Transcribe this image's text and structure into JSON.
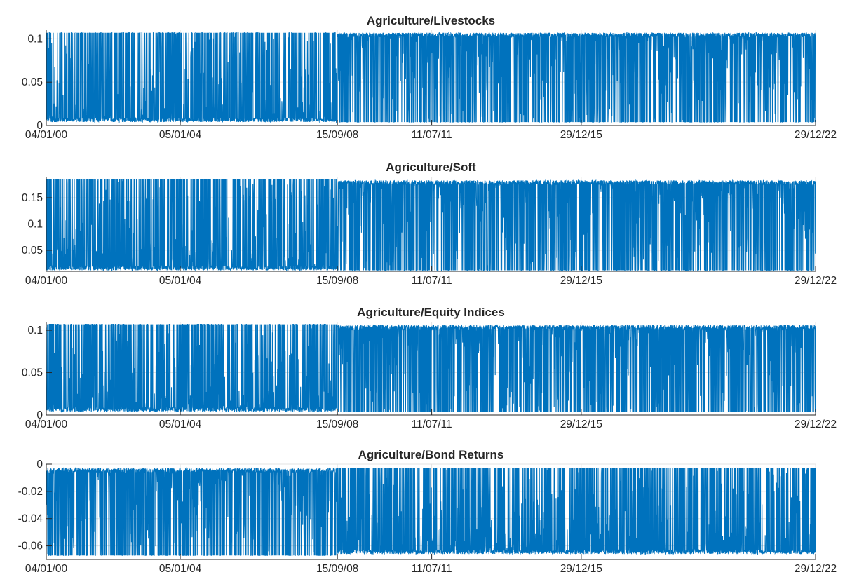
{
  "chart_data": [
    {
      "type": "line",
      "title": "Agriculture/Livestocks",
      "xlabel": "",
      "ylabel": "",
      "x_ticks": [
        "04/01/00",
        "05/01/04",
        "15/09/08",
        "11/07/11",
        "29/12/15",
        "29/12/22"
      ],
      "x_tick_dates": [
        "2000-01-04",
        "2004-01-05",
        "2008-09-15",
        "2011-07-11",
        "2015-12-29",
        "2022-12-29"
      ],
      "y_ticks": [
        "0",
        "0.05",
        "0.1"
      ],
      "ylim": [
        0,
        0.11
      ],
      "grid": true,
      "color": "#0072BD",
      "series_regimes": [
        {
          "x_range": [
            "2000-01-04",
            "2008-09-15"
          ],
          "level": 0.004,
          "spike_to": 0.107,
          "description": "low baseline with frequent spikes"
        },
        {
          "x_range": [
            "2008-09-15",
            "2022-12-29"
          ],
          "level": 0.107,
          "dip_to": 0.004,
          "description": "high plateau with frequent dips"
        }
      ]
    },
    {
      "type": "line",
      "title": "Agriculture/Soft",
      "xlabel": "",
      "ylabel": "",
      "x_ticks": [
        "04/01/00",
        "05/01/04",
        "15/09/08",
        "11/07/11",
        "29/12/15",
        "29/12/22"
      ],
      "x_tick_dates": [
        "2000-01-04",
        "2004-01-05",
        "2008-09-15",
        "2011-07-11",
        "2015-12-29",
        "2022-12-29"
      ],
      "y_ticks": [
        "0.05",
        "0.1",
        "0.15"
      ],
      "ylim": [
        0.01,
        0.19
      ],
      "grid": true,
      "color": "#0072BD",
      "series_regimes": [
        {
          "x_range": [
            "2000-01-04",
            "2008-09-15"
          ],
          "level": 0.012,
          "spike_to": 0.185,
          "description": "low baseline with frequent spikes"
        },
        {
          "x_range": [
            "2008-09-15",
            "2022-12-29"
          ],
          "level": 0.183,
          "dip_to": 0.012,
          "description": "high plateau with frequent dips"
        }
      ]
    },
    {
      "type": "line",
      "title": "Agriculture/Equity Indices",
      "xlabel": "",
      "ylabel": "",
      "x_ticks": [
        "04/01/00",
        "05/01/04",
        "15/09/08",
        "11/07/11",
        "29/12/15",
        "29/12/22"
      ],
      "x_tick_dates": [
        "2000-01-04",
        "2004-01-05",
        "2008-09-15",
        "2011-07-11",
        "2015-12-29",
        "2022-12-29"
      ],
      "y_ticks": [
        "0",
        "0.05",
        "0.1"
      ],
      "ylim": [
        0,
        0.11
      ],
      "grid": true,
      "color": "#0072BD",
      "series_regimes": [
        {
          "x_range": [
            "2000-01-04",
            "2008-09-15"
          ],
          "level": 0.004,
          "spike_to": 0.107,
          "description": "low baseline with frequent spikes"
        },
        {
          "x_range": [
            "2008-09-15",
            "2022-12-29"
          ],
          "level": 0.106,
          "dip_to": 0.004,
          "description": "high plateau with frequent dips"
        }
      ]
    },
    {
      "type": "line",
      "title": "Agriculture/Bond Returns",
      "xlabel": "",
      "ylabel": "",
      "x_ticks": [
        "04/01/00",
        "05/01/04",
        "15/09/08",
        "11/07/11",
        "29/12/15",
        "29/12/22"
      ],
      "x_tick_dates": [
        "2000-01-04",
        "2004-01-05",
        "2008-09-15",
        "2011-07-11",
        "2015-12-29",
        "2022-12-29"
      ],
      "y_ticks": [
        "-0.06",
        "-0.04",
        "-0.02",
        "0"
      ],
      "ylim": [
        -0.07,
        0
      ],
      "grid": true,
      "color": "#0072BD",
      "series_regimes": [
        {
          "x_range": [
            "2000-01-04",
            "2008-09-15"
          ],
          "level": -0.003,
          "dip_to": -0.067,
          "description": "high baseline with frequent dips"
        },
        {
          "x_range": [
            "2008-09-15",
            "2022-12-29"
          ],
          "level": -0.066,
          "spike_to": -0.003,
          "description": "low plateau with frequent spikes"
        }
      ]
    }
  ]
}
